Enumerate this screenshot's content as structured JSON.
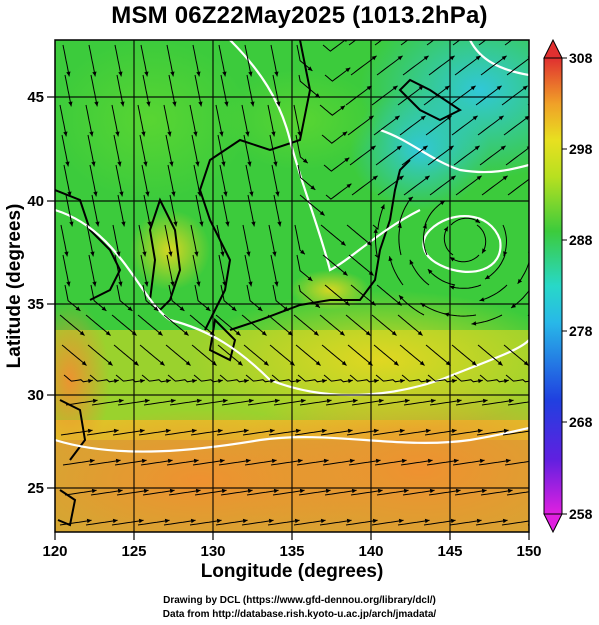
{
  "title": "MSM 06Z22May2025 (1013.2hPa)",
  "x_axis": {
    "label": "Longitude (degrees)",
    "ticks": [
      "120",
      "125",
      "130",
      "135",
      "140",
      "145",
      "150"
    ]
  },
  "y_axis": {
    "label": "Latitude  (degrees)",
    "ticks": [
      "25",
      "30",
      "35",
      "40",
      "45"
    ]
  },
  "colorbar": {
    "ticks": [
      "308",
      "298",
      "288",
      "278",
      "268",
      "258"
    ]
  },
  "colors": {
    "warm": "#f08a28",
    "yellow": "#e8e020",
    "green": "#3ccb3c",
    "cyan": "#28d8d8",
    "blue": "#2050e0",
    "magenta": "#e020e0",
    "red": "#e03030"
  },
  "credits": {
    "line1": "Drawing by DCL (https://www.gfd-dennou.org/library/dcl/)",
    "line2": "Data from http://database.rish.kyoto-u.ac.jp/arch/jmadata/"
  }
}
